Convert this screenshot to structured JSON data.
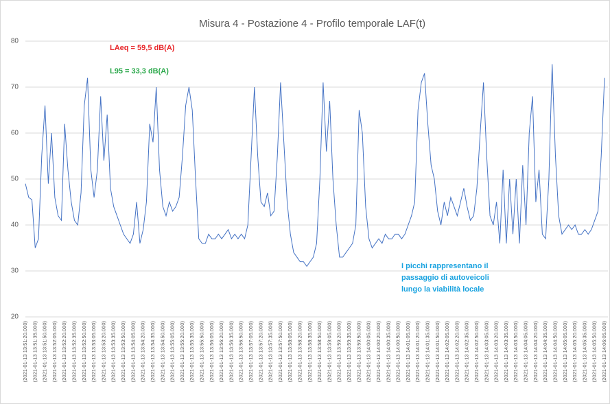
{
  "chart_data": {
    "type": "line",
    "title": "Misura 4 - Postazione 4 - Profilo temporale LAF(t)",
    "annotations": [
      {
        "text": "LAeq = 59,5 dB(A)",
        "color": "#e8262a"
      },
      {
        "text": "L95 = 33,3 dB(A)",
        "color": "#2aa84a"
      },
      {
        "lines": [
          "I picchi rappresentano il",
          "passaggio di autoveicoli",
          "lungo la viabilità locale"
        ],
        "color": "#1aa3e0"
      }
    ],
    "ylim": [
      20,
      80
    ],
    "yticks": [
      20,
      30,
      40,
      50,
      60,
      70,
      80
    ],
    "grid": true,
    "categories": [
      "(2021-01-13 13:51:20.000)",
      null,
      null,
      "(2021-01-13 13:51:35.000)",
      null,
      null,
      "(2021-01-13 13:51:50.000)",
      null,
      null,
      "(2021-01-13 13:52:05.000)",
      null,
      null,
      "(2021-01-13 13:52:20.000)",
      null,
      null,
      "(2021-01-13 13:52:35.000)",
      null,
      null,
      "(2021-01-13 13:52:50.000)",
      null,
      null,
      "(2021-01-13 13:53:05.000)",
      null,
      null,
      "(2021-01-13 13:53:20.000)",
      null,
      null,
      "(2021-01-13 13:53:35.000)",
      null,
      null,
      "(2021-01-13 13:53:50.000)",
      null,
      null,
      "(2021-01-13 13:54:05.000)",
      null,
      null,
      "(2021-01-13 13:54:20.000)",
      null,
      null,
      "(2021-01-13 13:54:35.000)",
      null,
      null,
      "(2021-01-13 13:54:50.000)",
      null,
      null,
      "(2021-01-13 13:55:05.000)",
      null,
      null,
      "(2021-01-13 13:55:20.000)",
      null,
      null,
      "(2021-01-13 13:55:35.000)",
      null,
      null,
      "(2021-01-13 13:55:50.000)",
      null,
      null,
      "(2021-01-13 13:56:05.000)",
      null,
      null,
      "(2021-01-13 13:56:20.000)",
      null,
      null,
      "(2021-01-13 13:56:35.000)",
      null,
      null,
      "(2021-01-13 13:56:50.000)",
      null,
      null,
      "(2021-01-13 13:57:05.000)",
      null,
      null,
      "(2021-01-13 13:57:20.000)",
      null,
      null,
      "(2021-01-13 13:57:35.000)",
      null,
      null,
      "(2021-01-13 13:57:50.000)",
      null,
      null,
      "(2021-01-13 13:58:05.000)",
      null,
      null,
      "(2021-01-13 13:58:20.000)",
      null,
      null,
      "(2021-01-13 13:58:35.000)",
      null,
      null,
      "(2021-01-13 13:58:50.000)",
      null,
      null,
      "(2021-01-13 13:59:05.000)",
      null,
      null,
      "(2021-01-13 13:59:20.000)",
      null,
      null,
      "(2021-01-13 13:59:35.000)",
      null,
      null,
      "(2021-01-13 13:59:50.000)",
      null,
      null,
      "(2021-01-13 14:00:05.000)",
      null,
      null,
      "(2021-01-13 14:00:20.000)",
      null,
      null,
      "(2021-01-13 14:00:35.000)",
      null,
      null,
      "(2021-01-13 14:00:50.000)",
      null,
      null,
      "(2021-01-13 14:01:05.000)",
      null,
      null,
      "(2021-01-13 14:01:20.000)",
      null,
      null,
      "(2021-01-13 14:01:35.000)",
      null,
      null,
      "(2021-01-13 14:01:50.000)",
      null,
      null,
      "(2021-01-13 14:02:05.000)",
      null,
      null,
      "(2021-01-13 14:02:20.000)",
      null,
      null,
      "(2021-01-13 14:02:35.000)",
      null,
      null,
      "(2021-01-13 14:02:50.000)",
      null,
      null,
      "(2021-01-13 14:03:05.000)",
      null,
      null,
      "(2021-01-13 14:03:20.000)",
      null,
      null,
      "(2021-01-13 14:03:35.000)",
      null,
      null,
      "(2021-01-13 14:03:50.000)",
      null,
      null,
      "(2021-01-13 14:04:05.000)",
      null,
      null,
      "(2021-01-13 14:04:20.000)",
      null,
      null,
      "(2021-01-13 14:04:35.000)",
      null,
      null,
      "(2021-01-13 14:04:50.000)",
      null,
      null,
      "(2021-01-13 14:05:05.000)",
      null,
      null,
      "(2021-01-13 14:05:20.000)",
      null,
      null,
      "(2021-01-13 14:05:35.000)",
      null,
      null,
      "(2021-01-13 14:05:50.000)",
      null,
      null,
      "(2021-01-13 14:06:05.000)"
    ],
    "series": [
      {
        "name": "LAF(t)",
        "color": "#4472c4",
        "values": [
          49,
          46,
          45.5,
          35,
          37,
          55,
          66,
          49,
          60,
          46,
          42,
          41,
          62,
          52,
          45,
          41,
          40,
          47,
          66,
          72,
          52,
          46,
          52,
          68,
          54,
          64,
          48,
          44,
          42,
          40,
          38,
          37,
          36,
          38,
          45,
          36,
          39,
          45,
          62,
          58,
          70,
          52,
          44,
          42,
          45,
          43,
          44,
          46,
          55,
          66,
          70,
          65,
          50,
          37,
          36,
          36,
          38,
          37,
          37,
          38,
          37,
          38,
          39,
          37,
          38,
          37,
          38,
          37,
          40,
          55,
          70,
          55,
          45,
          44,
          47,
          42,
          43,
          55,
          71,
          58,
          45,
          38,
          34,
          33,
          32,
          32,
          31,
          32,
          33,
          36,
          50,
          71,
          56,
          67,
          50,
          40,
          33,
          33,
          34,
          35,
          36,
          40,
          65,
          60,
          44,
          37,
          35,
          36,
          37,
          36,
          38,
          37,
          37,
          38,
          38,
          37,
          38,
          40,
          42,
          45,
          65,
          71,
          73,
          62,
          53,
          50,
          43,
          40,
          45,
          42,
          46,
          44,
          42,
          45,
          48,
          44,
          41,
          42,
          48,
          60,
          71,
          55,
          42,
          40,
          45,
          36,
          52,
          36,
          50,
          38,
          50,
          36,
          53,
          40,
          60,
          68,
          45,
          52,
          38,
          37,
          50,
          75,
          55,
          42,
          38,
          39,
          40,
          39,
          40,
          38,
          38,
          39,
          38,
          39,
          41,
          43,
          55,
          72
        ]
      }
    ]
  }
}
